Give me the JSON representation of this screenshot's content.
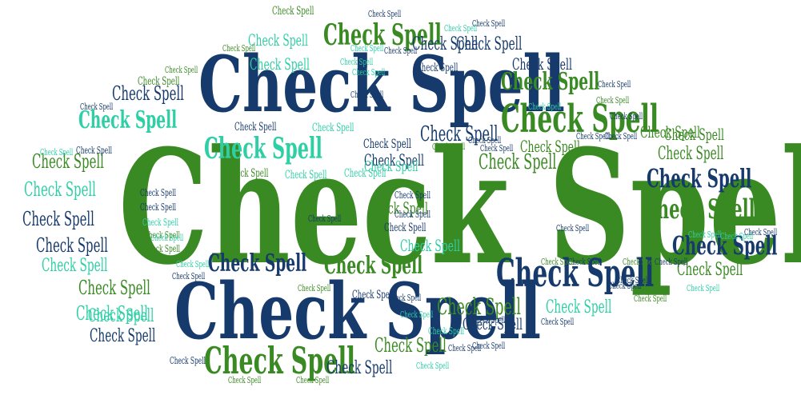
{
  "word_cloud": {
    "text": "Check Spell",
    "palette": {
      "navy": "#163a6b",
      "green": "#3a8a23",
      "teal": "#2fcfa6"
    },
    "word_count": 110
  }
}
